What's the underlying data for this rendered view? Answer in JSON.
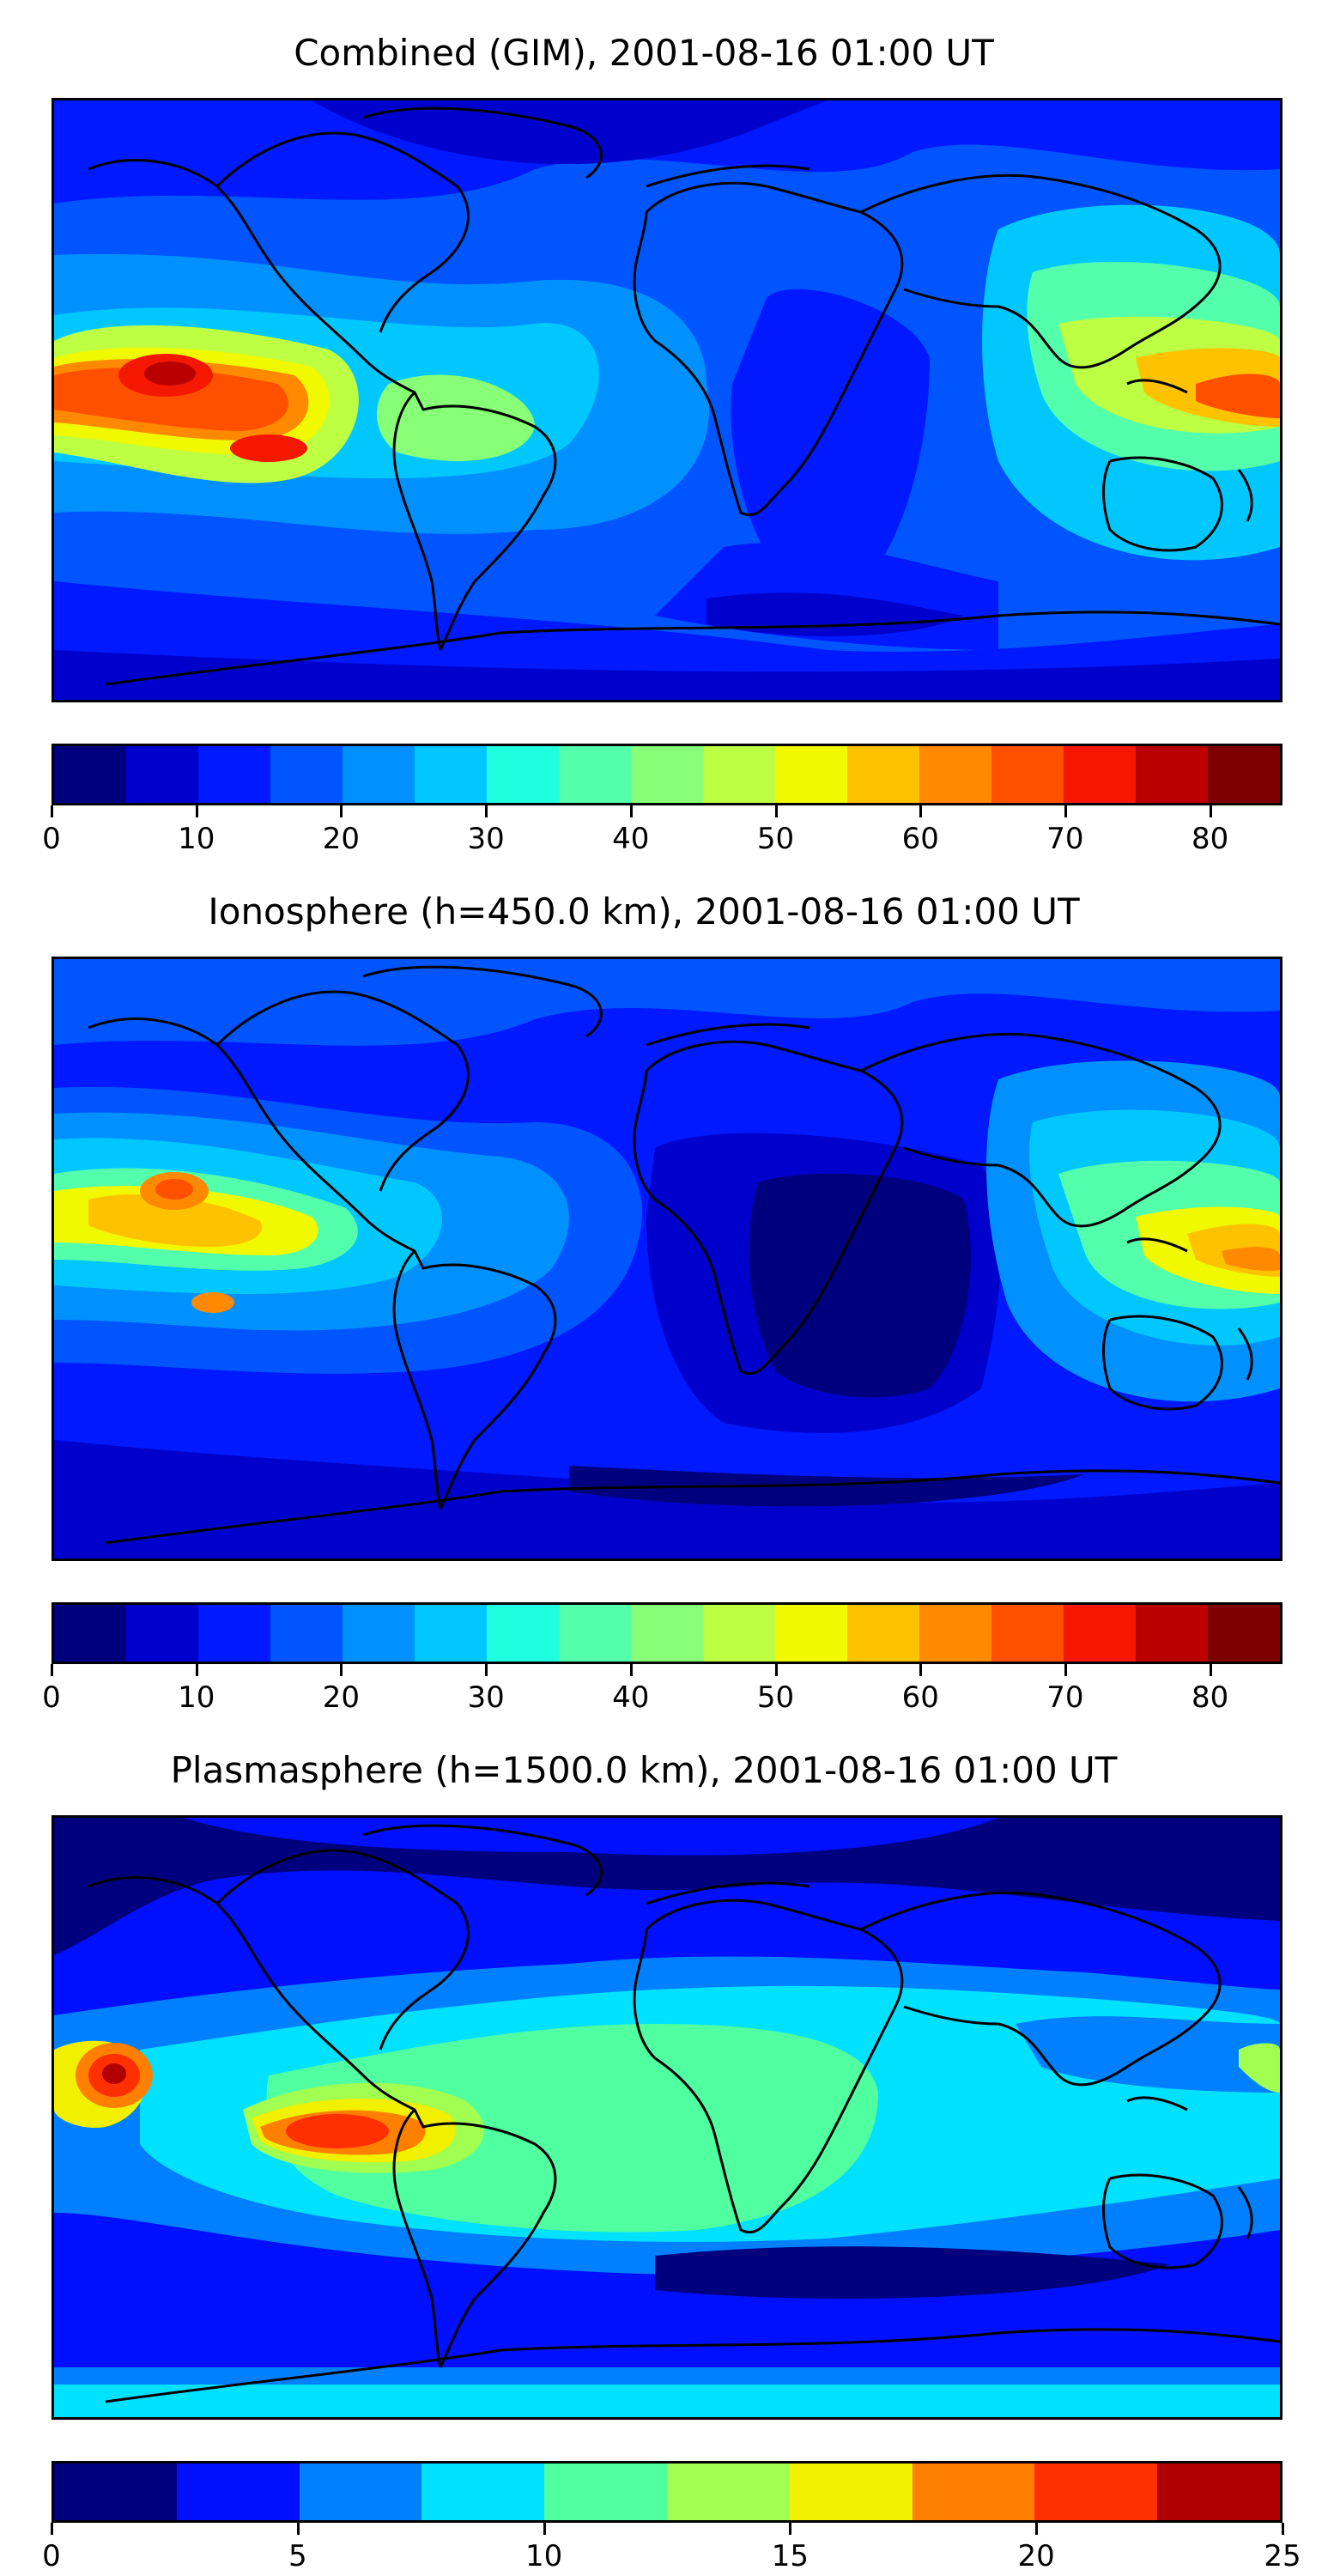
{
  "panels": [
    {
      "title": "Combined (GIM), 2001-08-16 01:00 UT",
      "colorbar": {
        "colors": [
          "#00007f",
          "#0000cc",
          "#0019ff",
          "#0055ff",
          "#0091ff",
          "#00c8ff",
          "#1fffdf",
          "#54ffab",
          "#87ff77",
          "#bcff43",
          "#f0f900",
          "#ffc200",
          "#ff8900",
          "#ff5000",
          "#f41800",
          "#bb0000",
          "#7f0000"
        ],
        "ticks": [
          "0",
          "10",
          "20",
          "30",
          "40",
          "50",
          "60",
          "70",
          "80"
        ],
        "tick_values": [
          0,
          10,
          20,
          30,
          40,
          50,
          60,
          70,
          80
        ],
        "range": [
          0,
          85
        ]
      }
    },
    {
      "title": "Ionosphere  (h=450.0 km), 2001-08-16 01:00 UT",
      "colorbar": {
        "colors": [
          "#00007f",
          "#0000cc",
          "#0019ff",
          "#0055ff",
          "#0091ff",
          "#00c8ff",
          "#1fffdf",
          "#54ffab",
          "#87ff77",
          "#bcff43",
          "#f0f900",
          "#ffc200",
          "#ff8900",
          "#ff5000",
          "#f41800",
          "#bb0000",
          "#7f0000"
        ],
        "ticks": [
          "0",
          "10",
          "20",
          "30",
          "40",
          "50",
          "60",
          "70",
          "80"
        ],
        "tick_values": [
          0,
          10,
          20,
          30,
          40,
          50,
          60,
          70,
          80
        ],
        "range": [
          0,
          85
        ]
      }
    },
    {
      "title": "Plasmasphere (h=1500.0 km), 2001-08-16 01:00 UT",
      "colorbar": {
        "colors": [
          "#00007f",
          "#0010ff",
          "#0080ff",
          "#00e0ff",
          "#50ffa0",
          "#a0ff50",
          "#f0f000",
          "#ff8000",
          "#ff3000",
          "#b00000"
        ],
        "ticks": [
          "0",
          "5",
          "10",
          "15",
          "20",
          "25"
        ],
        "tick_values": [
          0,
          5,
          10,
          15,
          20,
          25
        ],
        "range": [
          0,
          25
        ]
      }
    }
  ]
}
